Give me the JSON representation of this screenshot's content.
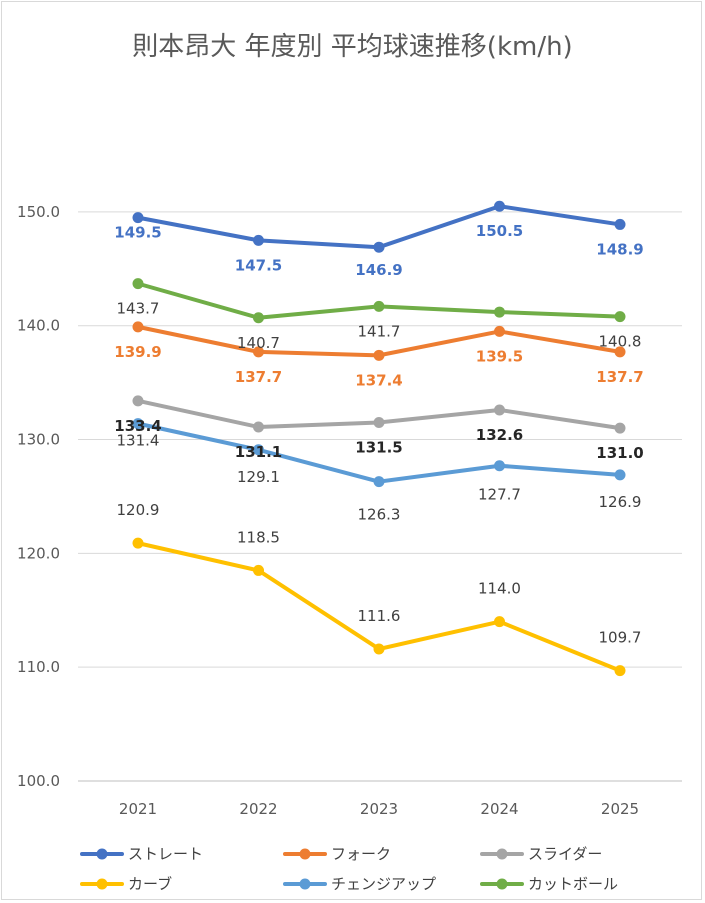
{
  "chart_data": {
    "type": "line",
    "title": "則本昂大 年度別 平均球速推移(km/h)",
    "categories": [
      "2021",
      "2022",
      "2023",
      "2024",
      "2025"
    ],
    "ylim": [
      100,
      155
    ],
    "yticks": [
      "100.0",
      "110.0",
      "120.0",
      "130.0",
      "140.0",
      "150.0"
    ],
    "grid": true,
    "legend_position": "bottom",
    "series": [
      {
        "name": "ストレート",
        "color": "#4472C4",
        "label_color": "#4472C4",
        "label_bold": true,
        "values": [
          149.5,
          147.5,
          146.9,
          150.5,
          148.9
        ],
        "labels": [
          "149.5",
          "147.5",
          "146.9",
          "150.5",
          "148.9"
        ]
      },
      {
        "name": "フォーク",
        "color": "#ED7D31",
        "label_color": "#ED7D31",
        "label_bold": true,
        "values": [
          139.9,
          137.7,
          137.4,
          139.5,
          137.7
        ],
        "labels": [
          "139.9",
          "137.7",
          "137.4",
          "139.5",
          "137.7"
        ]
      },
      {
        "name": "スライダー",
        "color": "#A5A5A5",
        "label_color": "#262626",
        "label_bold": true,
        "values": [
          133.4,
          131.1,
          131.5,
          132.6,
          131.0
        ],
        "labels": [
          "133.4",
          "131.1",
          "131.5",
          "132.6",
          "131.0"
        ]
      },
      {
        "name": "カーブ",
        "color": "#FFC000",
        "label_color": "#404040",
        "label_bold": false,
        "values": [
          120.9,
          118.5,
          111.6,
          114.0,
          109.7
        ],
        "labels": [
          "120.9",
          "118.5",
          "111.6",
          "114.0",
          "109.7"
        ]
      },
      {
        "name": "チェンジアップ",
        "color": "#5B9BD5",
        "label_color": "#404040",
        "label_bold": false,
        "values": [
          131.4,
          129.1,
          126.3,
          127.7,
          126.9
        ],
        "labels": [
          "131.4",
          "129.1",
          "126.3",
          "127.7",
          "126.9"
        ]
      },
      {
        "name": "カットボール",
        "color": "#70AD47",
        "label_color": "#404040",
        "label_bold": false,
        "values": [
          143.7,
          140.7,
          141.7,
          141.2,
          140.8
        ],
        "labels": [
          "143.7",
          "140.7",
          "141.7",
          "",
          "140.8"
        ]
      }
    ]
  }
}
